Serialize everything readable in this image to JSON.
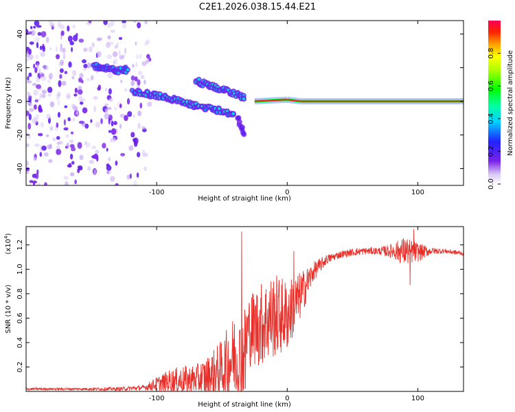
{
  "title": "C2E1.2026.038.15.44.E21",
  "chart_data": [
    {
      "type": "heatmap",
      "xlabel": "Height of straight line (km)",
      "ylabel": "Frequency (Hz)",
      "xlim": [
        -200,
        135
      ],
      "ylim": [
        -50,
        48
      ],
      "xticks": [
        -100,
        0,
        100
      ],
      "yticks": [
        -40,
        -20,
        0,
        20,
        40
      ],
      "colorbar": {
        "label": "Normalized spectral amplitude",
        "range": [
          0,
          1
        ],
        "ticks": [
          0.0,
          0.2,
          0.4,
          0.6,
          0.8
        ]
      },
      "features": [
        {
          "name": "noise_blobs",
          "x_range": [
            -200,
            -105
          ],
          "y_range": [
            -50,
            48
          ],
          "amplitude": 0.1
        },
        {
          "name": "upper_branch",
          "points": [
            [
              -148,
              21
            ],
            [
              -140,
              20
            ],
            [
              -130,
              18
            ],
            [
              -122,
              19
            ]
          ],
          "amplitude": 0.35
        },
        {
          "name": "main_branch",
          "points": [
            [
              -118,
              6
            ],
            [
              -105,
              4
            ],
            [
              -90,
              2
            ],
            [
              -75,
              -2
            ],
            [
              -60,
              -4
            ],
            [
              -48,
              -6
            ],
            [
              -40,
              -9
            ]
          ],
          "amplitude": 0.4
        },
        {
          "name": "second_branch",
          "points": [
            [
              -70,
              12
            ],
            [
              -62,
              10
            ],
            [
              -55,
              8
            ],
            [
              -45,
              6
            ],
            [
              -38,
              4
            ],
            [
              -32,
              1
            ]
          ],
          "amplitude": 0.4
        },
        {
          "name": "dip",
          "points": [
            [
              -38,
              -10
            ],
            [
              -35,
              -16
            ],
            [
              -33,
              -21
            ]
          ],
          "amplitude": 0.15
        },
        {
          "name": "steady_line",
          "points": [
            [
              -25,
              0
            ],
            [
              0,
              1
            ],
            [
              10,
              0
            ],
            [
              135,
              0
            ]
          ],
          "amplitude": 0.95
        }
      ]
    },
    {
      "type": "line",
      "xlabel": "Height of straight line (km)",
      "ylabel": "SNR (10 * v/v)",
      "yscale_label": "(x10",
      "yscale_exp": "4",
      "yscale_close": ")",
      "xlim": [
        -200,
        135
      ],
      "ylim": [
        0.0,
        1.35
      ],
      "xticks": [
        -100,
        0,
        100
      ],
      "yticks": [
        0.2,
        0.4,
        0.6,
        0.8,
        1.0,
        1.2
      ],
      "color": "#e8302a",
      "envelope": {
        "x": [
          -200,
          -160,
          -130,
          -110,
          -100,
          -90,
          -80,
          -70,
          -60,
          -50,
          -40,
          -35,
          -30,
          -20,
          -10,
          0,
          10,
          20,
          30,
          40,
          50,
          60,
          70,
          80,
          90,
          100,
          110,
          120,
          135
        ],
        "base": [
          0.02,
          0.02,
          0.02,
          0.03,
          0.06,
          0.08,
          0.09,
          0.1,
          0.12,
          0.18,
          0.3,
          0.22,
          0.5,
          0.55,
          0.62,
          0.62,
          0.78,
          0.98,
          1.08,
          1.12,
          1.14,
          1.15,
          1.15,
          1.15,
          1.15,
          1.14,
          1.15,
          1.15,
          1.13
        ],
        "amp": [
          0.01,
          0.01,
          0.015,
          0.02,
          0.06,
          0.1,
          0.12,
          0.12,
          0.18,
          0.25,
          0.35,
          0.4,
          0.3,
          0.35,
          0.35,
          0.3,
          0.2,
          0.08,
          0.04,
          0.03,
          0.03,
          0.03,
          0.03,
          0.06,
          0.12,
          0.08,
          0.03,
          0.02,
          0.02
        ]
      },
      "spikes": [
        [
          -35,
          1.31
        ],
        [
          -32,
          0.02
        ],
        [
          5,
          1.15
        ],
        [
          97,
          1.33
        ],
        [
          94,
          0.87
        ]
      ]
    }
  ]
}
